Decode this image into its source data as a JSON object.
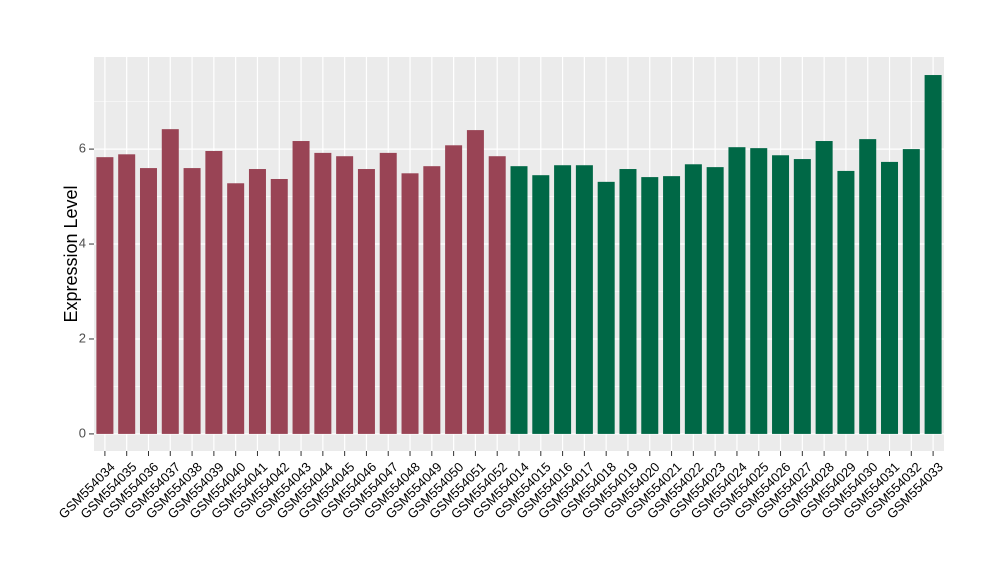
{
  "chart_data": {
    "type": "bar",
    "y_label": "Expression Level",
    "categories": [
      "GSM554034",
      "GSM554035",
      "GSM554036",
      "GSM554037",
      "GSM554038",
      "GSM554039",
      "GSM554040",
      "GSM554041",
      "GSM554042",
      "GSM554043",
      "GSM554044",
      "GSM554045",
      "GSM554046",
      "GSM554047",
      "GSM554048",
      "GSM554049",
      "GSM554050",
      "GSM554051",
      "GSM554052",
      "GSM554014",
      "GSM554015",
      "GSM554016",
      "GSM554017",
      "GSM554018",
      "GSM554019",
      "GSM554020",
      "GSM554021",
      "GSM554022",
      "GSM554023",
      "GSM554024",
      "GSM554025",
      "GSM554026",
      "GSM554027",
      "GSM554028",
      "GSM554029",
      "GSM554030",
      "GSM554031",
      "GSM554032",
      "GSM554033"
    ],
    "values": [
      5.83,
      5.89,
      5.6,
      6.42,
      5.6,
      5.96,
      5.28,
      5.58,
      5.37,
      6.17,
      5.92,
      5.85,
      5.58,
      5.92,
      5.49,
      5.64,
      6.08,
      6.4,
      5.85,
      5.64,
      5.45,
      5.66,
      5.66,
      5.31,
      5.58,
      5.41,
      5.43,
      5.68,
      5.62,
      6.04,
      6.02,
      5.87,
      5.79,
      6.17,
      5.54,
      6.21,
      5.73,
      6.0,
      7.56
    ],
    "colors": [
      "#994455",
      "#994455",
      "#994455",
      "#994455",
      "#994455",
      "#994455",
      "#994455",
      "#994455",
      "#994455",
      "#994455",
      "#994455",
      "#994455",
      "#994455",
      "#994455",
      "#994455",
      "#994455",
      "#994455",
      "#994455",
      "#994455",
      "#006846",
      "#006846",
      "#006846",
      "#006846",
      "#006846",
      "#006846",
      "#006846",
      "#006846",
      "#006846",
      "#006846",
      "#006846",
      "#006846",
      "#006846",
      "#006846",
      "#006846",
      "#006846",
      "#006846",
      "#006846",
      "#006846",
      "#006846"
    ],
    "ylim": [
      -0.36,
      7.94
    ],
    "yticks": [
      0,
      2,
      4,
      6
    ],
    "grid": true
  }
}
